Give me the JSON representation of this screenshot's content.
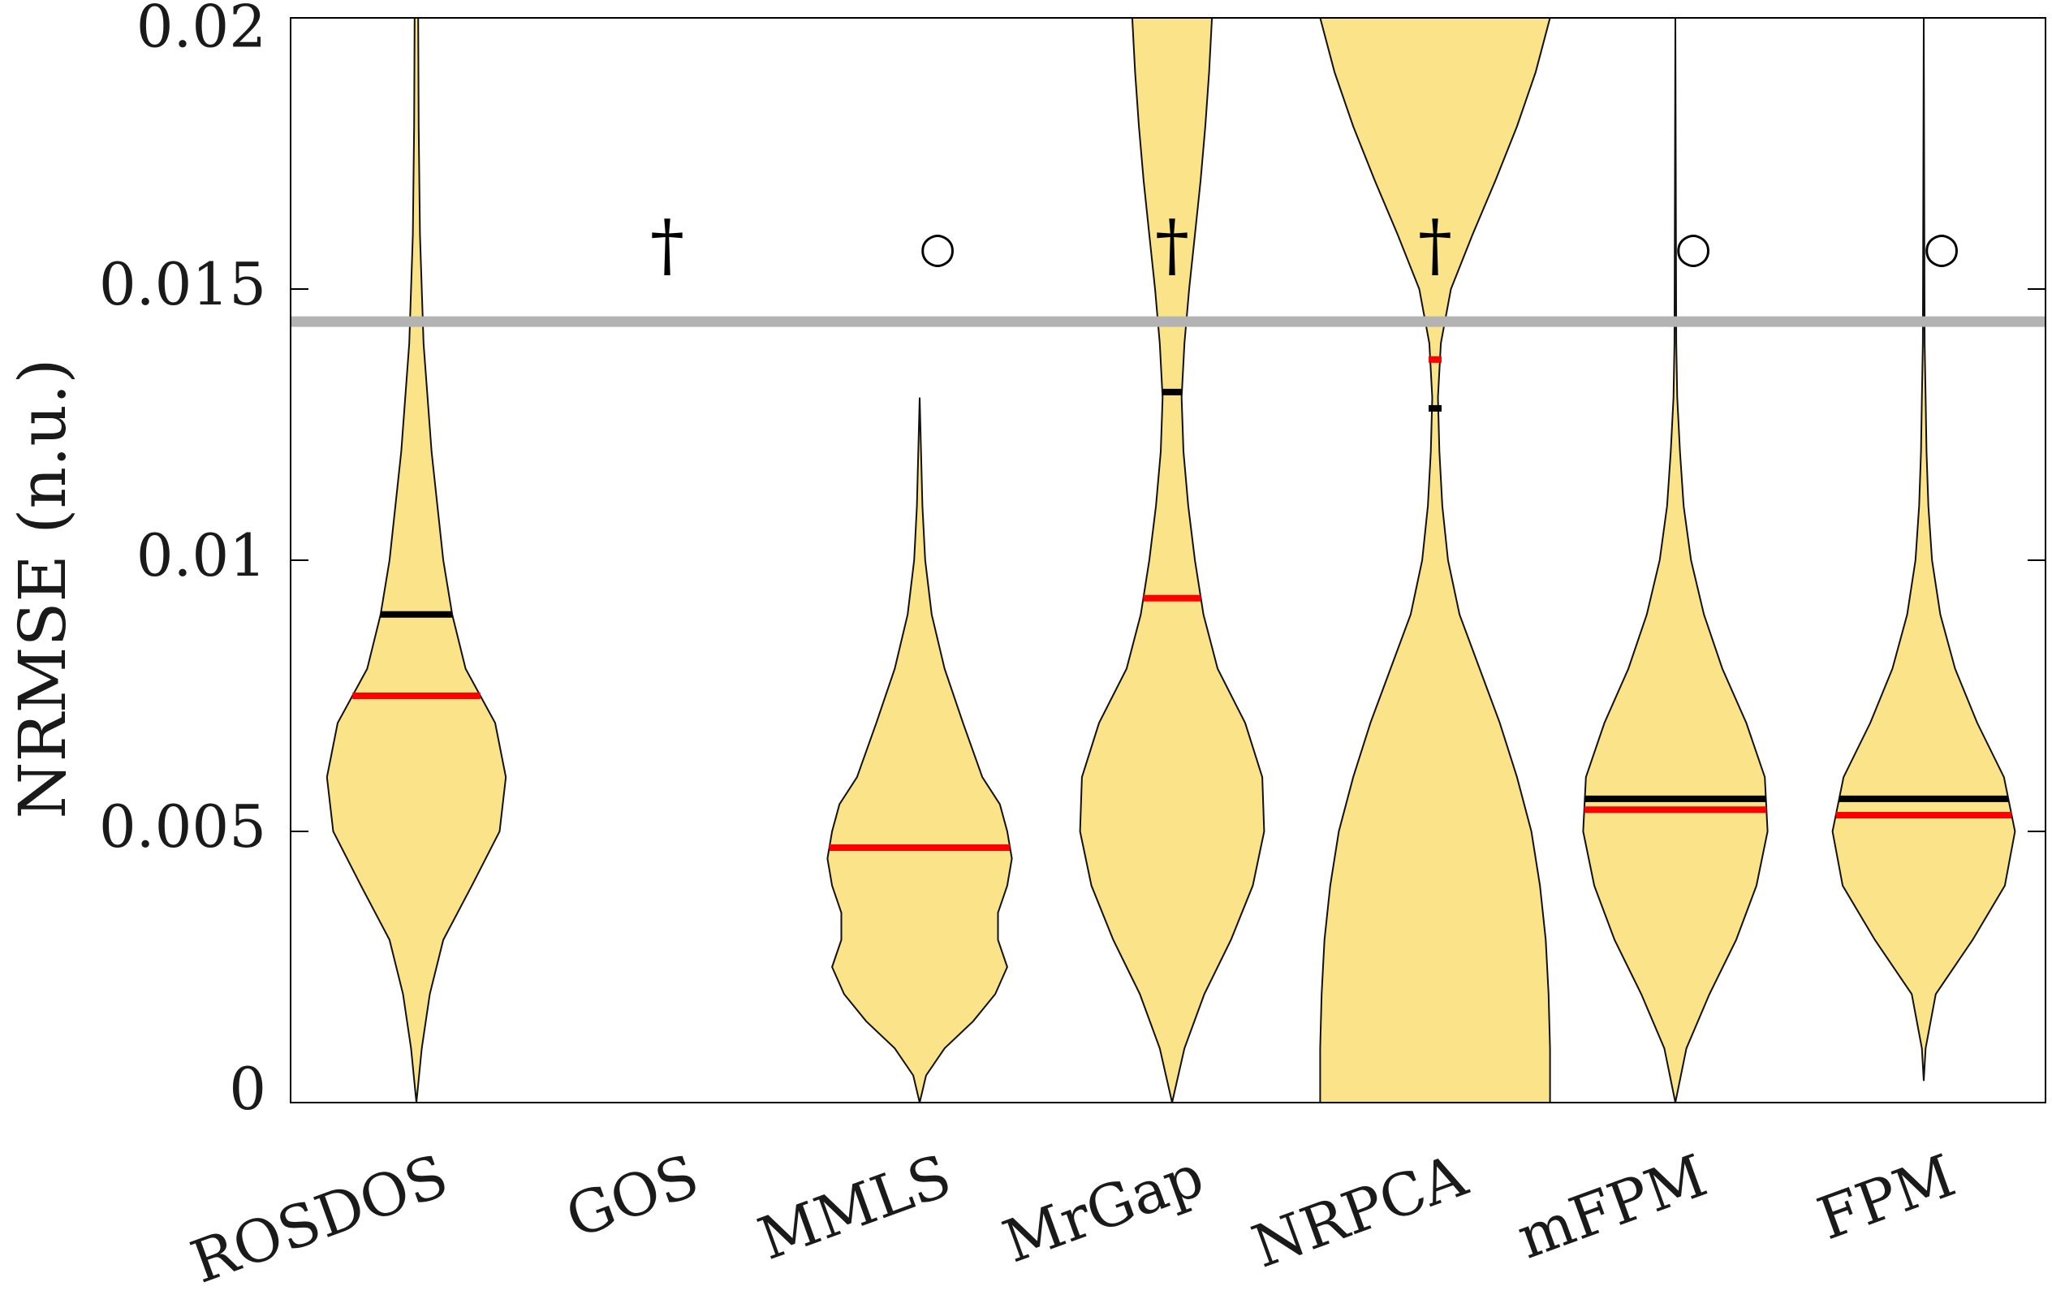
{
  "chart_data": {
    "type": "violin",
    "ylabel": "NRMSE (n.u.)",
    "ylim": [
      0,
      0.02
    ],
    "yticks": [
      "0",
      "0.005",
      "0.01",
      "0.015",
      "0.02"
    ],
    "reference_line": 0.0144,
    "categories": [
      "ROSDOS",
      "GOS",
      "MMLS",
      "MrGap",
      "NRPCA",
      "mFPM",
      "FPM"
    ],
    "markers": [
      "",
      "†",
      "○",
      "†",
      "†",
      "○",
      "○"
    ],
    "medians": [
      0.0075,
      null,
      0.0047,
      0.0093,
      0.0137,
      0.0054,
      0.0053
    ],
    "means": [
      0.009,
      null,
      0.0047,
      0.0131,
      0.0128,
      0.0056,
      0.0056
    ],
    "distributions": [
      {
        "profile": [
          [
            0.0,
            0.0
          ],
          [
            0.001,
            0.06
          ],
          [
            0.002,
            0.15
          ],
          [
            0.003,
            0.3
          ],
          [
            0.004,
            0.62
          ],
          [
            0.005,
            0.93
          ],
          [
            0.006,
            1.0
          ],
          [
            0.007,
            0.88
          ],
          [
            0.008,
            0.55
          ],
          [
            0.009,
            0.4
          ],
          [
            0.01,
            0.3
          ],
          [
            0.012,
            0.17
          ],
          [
            0.014,
            0.08
          ],
          [
            0.016,
            0.04
          ],
          [
            0.018,
            0.025
          ],
          [
            0.02,
            0.02
          ]
        ],
        "max_half_width": 0.00165
      },
      null,
      {
        "profile": [
          [
            0.0,
            0.0
          ],
          [
            0.0005,
            0.07
          ],
          [
            0.001,
            0.27
          ],
          [
            0.0015,
            0.58
          ],
          [
            0.002,
            0.82
          ],
          [
            0.0025,
            0.95
          ],
          [
            0.003,
            0.85
          ],
          [
            0.0035,
            0.85
          ],
          [
            0.004,
            0.95
          ],
          [
            0.0045,
            1.0
          ],
          [
            0.005,
            0.95
          ],
          [
            0.0055,
            0.87
          ],
          [
            0.006,
            0.68
          ],
          [
            0.007,
            0.47
          ],
          [
            0.008,
            0.27
          ],
          [
            0.009,
            0.13
          ],
          [
            0.01,
            0.06
          ],
          [
            0.011,
            0.03
          ],
          [
            0.012,
            0.015
          ],
          [
            0.013,
            0.0
          ]
        ],
        "max_half_width": 0.0017
      },
      {
        "profile": [
          [
            0.0,
            0.0
          ],
          [
            0.001,
            0.13
          ],
          [
            0.002,
            0.34
          ],
          [
            0.003,
            0.62
          ],
          [
            0.004,
            0.85
          ],
          [
            0.005,
            0.97
          ],
          [
            0.006,
            0.95
          ],
          [
            0.007,
            0.77
          ],
          [
            0.008,
            0.48
          ],
          [
            0.009,
            0.33
          ],
          [
            0.01,
            0.24
          ],
          [
            0.011,
            0.17
          ],
          [
            0.012,
            0.12
          ],
          [
            0.013,
            0.1
          ],
          [
            0.014,
            0.13
          ],
          [
            0.015,
            0.18
          ],
          [
            0.016,
            0.24
          ],
          [
            0.017,
            0.3
          ],
          [
            0.018,
            0.35
          ],
          [
            0.019,
            0.39
          ],
          [
            0.02,
            0.42
          ]
        ],
        "max_half_width": 0.00175
      },
      {
        "profile": [
          [
            0.0,
            0.8
          ],
          [
            0.001,
            0.8
          ],
          [
            0.002,
            0.79
          ],
          [
            0.003,
            0.77
          ],
          [
            0.004,
            0.73
          ],
          [
            0.005,
            0.67
          ],
          [
            0.006,
            0.57
          ],
          [
            0.007,
            0.45
          ],
          [
            0.008,
            0.31
          ],
          [
            0.009,
            0.17
          ],
          [
            0.01,
            0.09
          ],
          [
            0.011,
            0.05
          ],
          [
            0.012,
            0.03
          ],
          [
            0.013,
            0.02
          ],
          [
            0.014,
            0.04
          ],
          [
            0.015,
            0.11
          ],
          [
            0.016,
            0.26
          ],
          [
            0.017,
            0.42
          ],
          [
            0.018,
            0.57
          ],
          [
            0.019,
            0.7
          ],
          [
            0.02,
            0.8
          ]
        ],
        "max_half_width": 0.00265
      },
      {
        "profile": [
          [
            0.0,
            0.0
          ],
          [
            0.001,
            0.12
          ],
          [
            0.002,
            0.37
          ],
          [
            0.003,
            0.66
          ],
          [
            0.004,
            0.88
          ],
          [
            0.005,
            1.0
          ],
          [
            0.006,
            0.97
          ],
          [
            0.007,
            0.77
          ],
          [
            0.008,
            0.51
          ],
          [
            0.009,
            0.31
          ],
          [
            0.01,
            0.17
          ],
          [
            0.011,
            0.09
          ],
          [
            0.012,
            0.05
          ],
          [
            0.013,
            0.02
          ],
          [
            0.014,
            0.01
          ],
          [
            0.02,
            0.0
          ]
        ],
        "max_half_width": 0.0017
      },
      {
        "profile": [
          [
            0.0004,
            0.0
          ],
          [
            0.001,
            0.02
          ],
          [
            0.002,
            0.13
          ],
          [
            0.003,
            0.53
          ],
          [
            0.004,
            0.88
          ],
          [
            0.005,
            0.99
          ],
          [
            0.006,
            0.87
          ],
          [
            0.007,
            0.58
          ],
          [
            0.008,
            0.34
          ],
          [
            0.009,
            0.18
          ],
          [
            0.01,
            0.09
          ],
          [
            0.011,
            0.05
          ],
          [
            0.012,
            0.03
          ],
          [
            0.013,
            0.02
          ],
          [
            0.014,
            0.01
          ],
          [
            0.02,
            0.0
          ]
        ],
        "max_half_width": 0.0017
      }
    ],
    "colors": {
      "violin_fill": "#fbe38a",
      "violin_stroke": "#111111",
      "median": "#ff0000",
      "mean": "#000000",
      "reference_line": "#b3b3b3"
    }
  }
}
